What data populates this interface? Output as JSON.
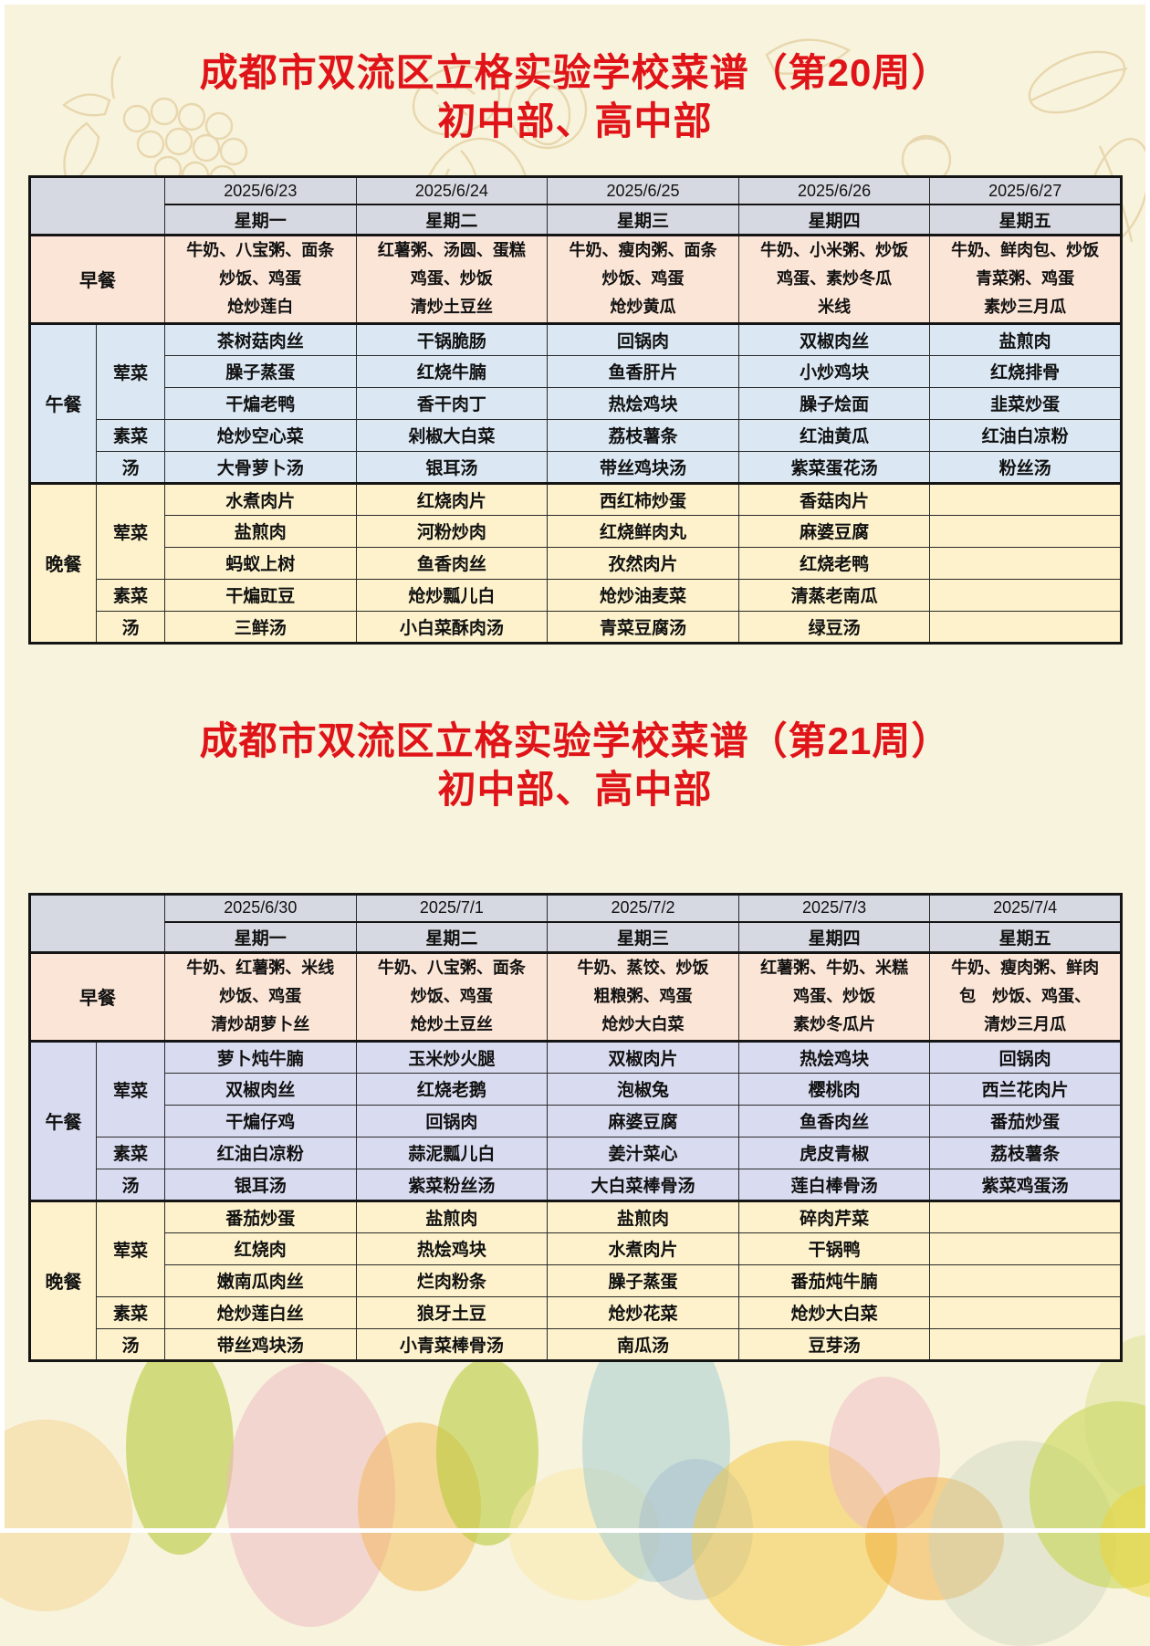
{
  "theme": {
    "title_color": "#e01418",
    "border_color": "#151515",
    "doodle_color": "#e6d3a6"
  },
  "weeks": [
    {
      "title_line1": "成都市双流区立格实验学校菜谱（第20周）",
      "title_line2": "初中部、高中部",
      "colors": {
        "header": "#d6d9e1",
        "breakfast": "#fbe5d6",
        "lunch": "#dbe8f4",
        "dinner": "#fdf2cc"
      },
      "dates": [
        "2025/6/23",
        "2025/6/24",
        "2025/6/25",
        "2025/6/26",
        "2025/6/27"
      ],
      "weekdays": [
        "星期一",
        "星期二",
        "星期三",
        "星期四",
        "星期五"
      ],
      "breakfast": {
        "label": "早餐",
        "cells": [
          [
            "牛奶、八宝粥、面条",
            "炒饭、鸡蛋",
            "炝炒莲白"
          ],
          [
            "红薯粥、汤圆、蛋糕",
            "鸡蛋、炒饭",
            "清炒土豆丝"
          ],
          [
            "牛奶、瘦肉粥、面条",
            "炒饭、鸡蛋",
            "炝炒黄瓜"
          ],
          [
            "牛奶、小米粥、炒饭",
            "鸡蛋、素炒冬瓜",
            "米线"
          ],
          [
            "牛奶、鲜肉包、炒饭",
            "青菜粥、鸡蛋",
            "素炒三月瓜"
          ]
        ]
      },
      "lunch": {
        "label": "午餐",
        "groups": [
          {
            "label": "荤菜",
            "rows": [
              [
                "茶树菇肉丝",
                "干锅脆肠",
                "回锅肉",
                "双椒肉丝",
                "盐煎肉"
              ],
              [
                "臊子蒸蛋",
                "红烧牛腩",
                "鱼香肝片",
                "小炒鸡块",
                "红烧排骨"
              ],
              [
                "干煸老鸭",
                "香干肉丁",
                "热烩鸡块",
                "臊子烩面",
                "韭菜炒蛋"
              ]
            ]
          },
          {
            "label": "素菜",
            "rows": [
              [
                "炝炒空心菜",
                "剁椒大白菜",
                "荔枝薯条",
                "红油黄瓜",
                "红油白凉粉"
              ]
            ]
          },
          {
            "label": "汤",
            "rows": [
              [
                "大骨萝卜汤",
                "银耳汤",
                "带丝鸡块汤",
                "紫菜蛋花汤",
                "粉丝汤"
              ]
            ]
          }
        ]
      },
      "dinner": {
        "label": "晚餐",
        "groups": [
          {
            "label": "荤菜",
            "rows": [
              [
                "水煮肉片",
                "红烧肉片",
                "西红柿炒蛋",
                "香菇肉片",
                ""
              ],
              [
                "盐煎肉",
                "河粉炒肉",
                "红烧鲜肉丸",
                "麻婆豆腐",
                ""
              ],
              [
                "蚂蚁上树",
                "鱼香肉丝",
                "孜然肉片",
                "红烧老鸭",
                ""
              ]
            ]
          },
          {
            "label": "素菜",
            "rows": [
              [
                "干煸豇豆",
                "炝炒瓢儿白",
                "炝炒油麦菜",
                "清蒸老南瓜",
                ""
              ]
            ]
          },
          {
            "label": "汤",
            "rows": [
              [
                "三鲜汤",
                "小白菜酥肉汤",
                "青菜豆腐汤",
                "绿豆汤",
                ""
              ]
            ]
          }
        ]
      }
    },
    {
      "title_line1": "成都市双流区立格实验学校菜谱（第21周）",
      "title_line2": "初中部、高中部",
      "colors": {
        "header": "#d6d9e1",
        "breakfast": "#fbe5d6",
        "lunch": "#d9dcf0",
        "dinner": "#fdf2cc"
      },
      "dates": [
        "2025/6/30",
        "2025/7/1",
        "2025/7/2",
        "2025/7/3",
        "2025/7/4"
      ],
      "weekdays": [
        "星期一",
        "星期二",
        "星期三",
        "星期四",
        "星期五"
      ],
      "breakfast": {
        "label": "早餐",
        "cells": [
          [
            "牛奶、红薯粥、米线",
            "炒饭、鸡蛋",
            "清炒胡萝卜丝"
          ],
          [
            "牛奶、八宝粥、面条",
            "炒饭、鸡蛋",
            "炝炒土豆丝"
          ],
          [
            "牛奶、蒸饺、炒饭",
            "粗粮粥、鸡蛋",
            "炝炒大白菜"
          ],
          [
            "红薯粥、牛奶、米糕",
            "鸡蛋、炒饭",
            "素炒冬瓜片"
          ],
          [
            "牛奶、瘦肉粥、鲜肉",
            "包　炒饭、鸡蛋、",
            "清炒三月瓜"
          ]
        ]
      },
      "lunch": {
        "label": "午餐",
        "groups": [
          {
            "label": "荤菜",
            "rows": [
              [
                "萝卜炖牛腩",
                "玉米炒火腿",
                "双椒肉片",
                "热烩鸡块",
                "回锅肉"
              ],
              [
                "双椒肉丝",
                "红烧老鹅",
                "泡椒兔",
                "樱桃肉",
                "西兰花肉片"
              ],
              [
                "干煸仔鸡",
                "回锅肉",
                "麻婆豆腐",
                "鱼香肉丝",
                "番茄炒蛋"
              ]
            ]
          },
          {
            "label": "素菜",
            "rows": [
              [
                "红油白凉粉",
                "蒜泥瓢儿白",
                "姜汁菜心",
                "虎皮青椒",
                "荔枝薯条"
              ]
            ]
          },
          {
            "label": "汤",
            "rows": [
              [
                "银耳汤",
                "紫菜粉丝汤",
                "大白菜棒骨汤",
                "莲白棒骨汤",
                "紫菜鸡蛋汤"
              ]
            ]
          }
        ]
      },
      "dinner": {
        "label": "晚餐",
        "groups": [
          {
            "label": "荤菜",
            "rows": [
              [
                "番茄炒蛋",
                "盐煎肉",
                "盐煎肉",
                "碎肉芹菜",
                ""
              ],
              [
                "红烧肉",
                "热烩鸡块",
                "水煮肉片",
                "干锅鸭",
                ""
              ],
              [
                "嫩南瓜肉丝",
                "烂肉粉条",
                "臊子蒸蛋",
                "番茄炖牛腩",
                ""
              ]
            ]
          },
          {
            "label": "素菜",
            "rows": [
              [
                "炝炒莲白丝",
                "狼牙土豆",
                "炝炒花菜",
                "炝炒大白菜",
                ""
              ]
            ]
          },
          {
            "label": "汤",
            "rows": [
              [
                "带丝鸡块汤",
                "小青菜棒骨汤",
                "南瓜汤",
                "豆芽汤",
                ""
              ]
            ]
          }
        ]
      }
    }
  ]
}
